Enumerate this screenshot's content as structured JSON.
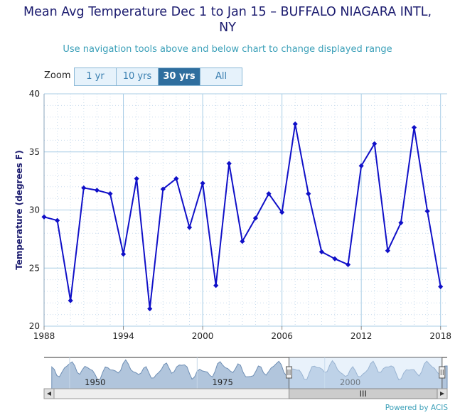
{
  "title_line1": "Mean Avg Temperature Dec 1 to Jan 15 – BUFFALO NIAGARA INTL,",
  "title_line2": "NY",
  "subtitle": "Use navigation tools above and below chart to change displayed range",
  "zoom": {
    "label": "Zoom",
    "buttons": [
      {
        "label": "1 yr",
        "active": false
      },
      {
        "label": "10 yrs",
        "active": false
      },
      {
        "label": "30 yrs",
        "active": true
      },
      {
        "label": "All",
        "active": false
      }
    ]
  },
  "credit": "Powered by ACIS",
  "colors": {
    "series": "#1010c8",
    "grid": "#a8cde6",
    "navigator_fill": "#a9bfd8",
    "navigator_mask": "#cfe3f7",
    "button_active": "#2f6e9e"
  },
  "chart_data": {
    "type": "line",
    "ylabel": "Temperature (degrees F)",
    "xlim": [
      1988,
      2018.5
    ],
    "ylim": [
      20,
      40
    ],
    "xticks": [
      1988,
      1994,
      2000,
      2006,
      2012,
      2018
    ],
    "yticks": [
      20,
      25,
      30,
      35,
      40
    ],
    "x": [
      1988,
      1989,
      1990,
      1991,
      1992,
      1993,
      1994,
      1995,
      1996,
      1997,
      1998,
      1999,
      2000,
      2001,
      2002,
      2003,
      2004,
      2005,
      2006,
      2007,
      2008,
      2009,
      2010,
      2011,
      2012,
      2013,
      2014,
      2015,
      2016,
      2017,
      2018
    ],
    "series": [
      {
        "values": [
          29.4,
          29.1,
          22.2,
          31.9,
          31.7,
          31.4,
          26.2,
          32.7,
          21.5,
          31.8,
          32.7,
          28.5,
          32.3,
          23.5,
          34.0,
          27.3,
          29.3,
          31.4,
          29.8,
          37.4,
          31.4,
          26.4,
          25.8,
          25.3,
          33.8,
          35.7,
          26.5,
          28.9,
          37.1,
          29.9,
          23.4
        ]
      }
    ],
    "navigator": {
      "labels": [
        "1950",
        "1975",
        "2000"
      ],
      "label_years": [
        1950,
        1975,
        2000
      ],
      "range": [
        1940,
        2019
      ],
      "selected": [
        1988,
        2018
      ],
      "scrollbar_grip": "III"
    }
  }
}
